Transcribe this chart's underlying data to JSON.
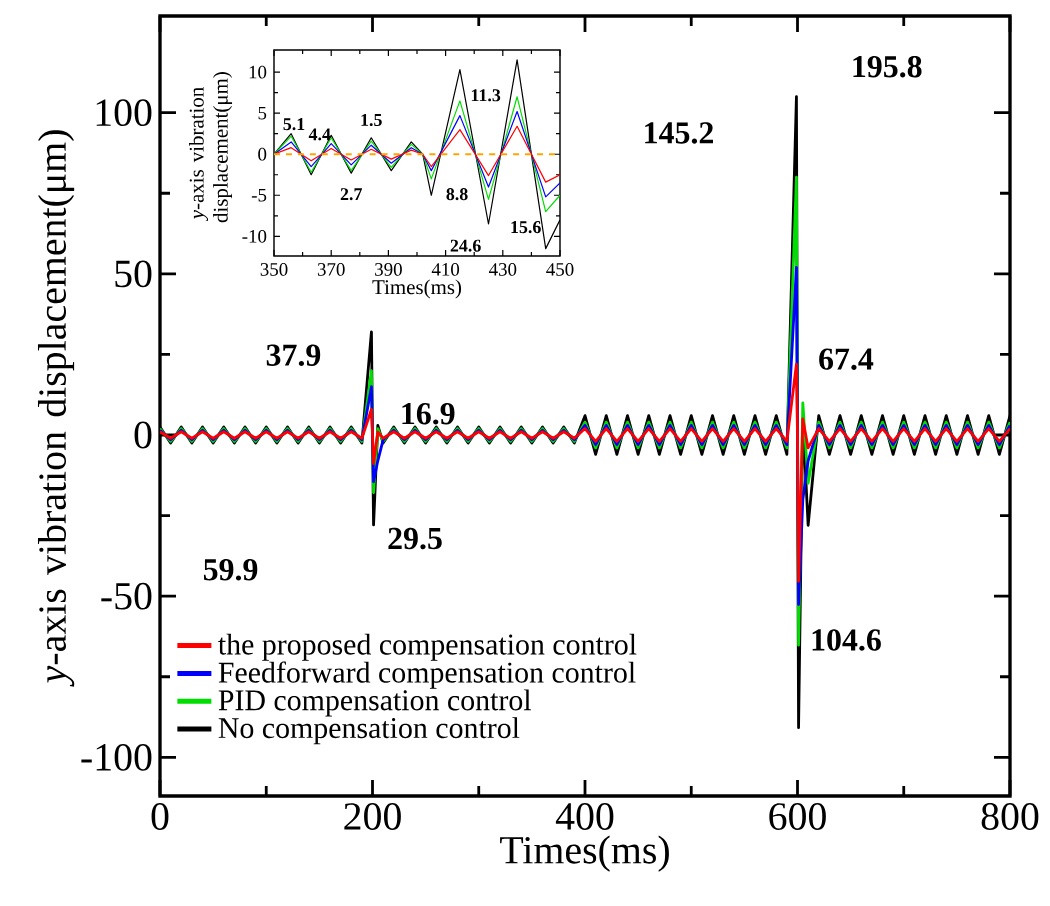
{
  "chart_data": [
    {
      "type": "line",
      "xlabel": "Times(ms)",
      "ylabel": "*y*-axis vibration displacement(μm)",
      "xlim": [
        0,
        800
      ],
      "ylim": [
        -112,
        130
      ],
      "xticks": [
        0,
        200,
        400,
        600,
        800
      ],
      "yticks": [
        -100,
        -50,
        0,
        50,
        100
      ],
      "legend": "bottom left",
      "x": [
        0,
        10,
        20,
        30,
        40,
        50,
        60,
        70,
        80,
        90,
        100,
        110,
        120,
        130,
        140,
        150,
        160,
        170,
        180,
        190,
        199,
        200,
        201,
        205,
        210,
        220,
        230,
        240,
        250,
        260,
        270,
        280,
        290,
        300,
        310,
        320,
        330,
        340,
        350,
        360,
        370,
        380,
        390,
        400,
        410,
        420,
        430,
        440,
        450,
        460,
        470,
        480,
        490,
        500,
        510,
        520,
        530,
        540,
        550,
        560,
        570,
        580,
        590,
        599,
        600,
        601,
        605,
        610,
        620,
        630,
        640,
        650,
        660,
        670,
        680,
        690,
        700,
        710,
        720,
        730,
        740,
        750,
        760,
        770,
        780,
        790,
        800
      ],
      "series": [
        {
          "name": "the proposed compensation control",
          "color": "#ff0000",
          "values": [
            1,
            -1,
            1,
            -1,
            1,
            -1,
            1,
            -1,
            1,
            -1,
            1,
            -1,
            1,
            -1,
            1,
            -1,
            1,
            -1,
            1,
            -1,
            8,
            0,
            -8.9,
            1,
            -1,
            1,
            -1,
            1,
            -1,
            1,
            -1,
            1,
            -1,
            1,
            -1,
            1,
            -1,
            1,
            -1,
            1,
            -1,
            1,
            -1,
            2,
            -2,
            2,
            -2,
            2,
            -2,
            2,
            -2,
            2,
            -2,
            2,
            -2,
            2,
            -2,
            2,
            -2,
            2,
            -2,
            2,
            -2,
            22,
            0,
            -45.4,
            5,
            -4,
            2,
            -2,
            2,
            -2,
            2,
            -2,
            2,
            -2,
            2,
            -2,
            2,
            -2,
            2,
            -2,
            2,
            -2,
            2,
            -2,
            2
          ]
        },
        {
          "name": "Feedforward compensation control",
          "color": "#0000ff",
          "values": [
            1.5,
            -1.5,
            1.5,
            -1.5,
            1.5,
            -1.5,
            1.5,
            -1.5,
            1.5,
            -1.5,
            1.5,
            -1.5,
            1.5,
            -1.5,
            1.5,
            -1.5,
            1.5,
            -1.5,
            1.5,
            -1.5,
            15,
            0,
            -14.5,
            -8,
            -1.5,
            1.5,
            -1.5,
            1.5,
            -1.5,
            1.5,
            -1.5,
            1.5,
            -1.5,
            1.5,
            -1.5,
            1.5,
            -1.5,
            1.5,
            -1.5,
            1.5,
            -1.5,
            1.5,
            -1.5,
            3,
            -3,
            3,
            -3,
            3,
            -3,
            3,
            -3,
            3,
            -3,
            3,
            -3,
            3,
            -3,
            3,
            -3,
            3,
            -3,
            3,
            -3,
            52,
            0,
            -52.6,
            -20,
            -8,
            3,
            -3,
            3,
            -3,
            3,
            -3,
            3,
            -3,
            3,
            -3,
            3,
            -3,
            3,
            -3,
            3,
            -3,
            3,
            -3,
            3
          ]
        },
        {
          "name": "PID compensation control",
          "color": "#00dd00",
          "values": [
            2,
            -2,
            2,
            -2,
            2,
            -2,
            2,
            -2,
            2,
            -2,
            2,
            -2,
            2,
            -2,
            2,
            -2,
            2,
            -2,
            2,
            -2,
            20,
            0,
            -17.9,
            2,
            -2,
            2,
            -2,
            2,
            -2,
            2,
            -2,
            2,
            -2,
            2,
            -2,
            2,
            -2,
            2,
            -2,
            2,
            -2,
            2,
            -2,
            4,
            -4,
            4,
            -4,
            4,
            -4,
            4,
            -4,
            4,
            -4,
            4,
            -4,
            4,
            -4,
            4,
            -4,
            4,
            -4,
            4,
            -4,
            80,
            0,
            -65.2,
            10,
            -15,
            4,
            -4,
            4,
            -4,
            4,
            -4,
            4,
            -4,
            4,
            -4,
            4,
            -4,
            4,
            -4,
            4,
            -4,
            4,
            -4,
            4
          ]
        },
        {
          "name": "No compensation control",
          "color": "#000000",
          "values": [
            2.5,
            -2.5,
            2.5,
            -2.5,
            2.5,
            -2.5,
            2.5,
            -2.5,
            2.5,
            -2.5,
            2.5,
            -2.5,
            2.5,
            -2.5,
            2.5,
            -2.5,
            2.5,
            -2.5,
            2.5,
            -2.5,
            32,
            0,
            -27.9,
            3,
            -2.5,
            2.5,
            -2.5,
            2.5,
            -2.5,
            2.5,
            -2.5,
            2.5,
            -2.5,
            2.5,
            -2.5,
            2.5,
            -2.5,
            2.5,
            -2.5,
            2.5,
            -2.5,
            2.5,
            -2.5,
            6,
            -6,
            6,
            -6,
            6,
            -6,
            6,
            -6,
            6,
            -6,
            6,
            -6,
            6,
            -6,
            6,
            -6,
            6,
            -6,
            6,
            -6,
            105,
            0,
            -90.8,
            5,
            -28,
            6,
            -6,
            6,
            -6,
            6,
            -6,
            6,
            -6,
            6,
            -6,
            6,
            -6,
            6,
            -6,
            6,
            -6,
            6,
            -6,
            6
          ]
        }
      ],
      "annotations": [
        "37.9",
        "59.9",
        "16.9",
        "29.5",
        "145.2",
        "195.8",
        "67.4",
        "104.6"
      ]
    },
    {
      "type": "line",
      "xlabel": "Times(ms)",
      "ylabel": "*y*-axis vibration displacement(μm)",
      "xlim": [
        350,
        450
      ],
      "ylim": [
        -12.4,
        12.7
      ],
      "xticks": [
        350,
        370,
        390,
        410,
        430,
        450
      ],
      "yticks": [
        -10,
        -5,
        0,
        5,
        10
      ],
      "x": [
        350,
        356,
        363,
        370,
        377,
        384,
        391,
        398,
        402,
        405,
        415,
        425,
        435,
        445,
        450
      ],
      "series": [
        {
          "color": "#ff0000",
          "values": [
            0,
            0.8,
            -0.8,
            0.7,
            -0.7,
            0.6,
            -0.6,
            0.5,
            0,
            -1.5,
            3,
            -2.6,
            3.4,
            -3.4,
            -2.5
          ]
        },
        {
          "color": "#0000ff",
          "values": [
            0,
            1.5,
            -1.5,
            1.3,
            -1.3,
            1.1,
            -1.1,
            0.8,
            0,
            -2,
            4.7,
            -4,
            5.2,
            -5.2,
            -3.5
          ]
        },
        {
          "color": "#00dd00",
          "values": [
            0,
            2.2,
            -2.2,
            2,
            -2,
            1.6,
            -1.6,
            1.2,
            0,
            -3,
            6.5,
            -5.5,
            7,
            -7,
            -5
          ]
        },
        {
          "color": "#000000",
          "values": [
            0,
            2.5,
            -2.5,
            2.3,
            -2.3,
            2,
            -2,
            1.5,
            0,
            -5,
            10.3,
            -8.5,
            11.5,
            -11.5,
            -8
          ]
        }
      ],
      "ref_lines": [
        {
          "axis": "y",
          "value": 0,
          "color": "#ffa500",
          "line_style": "dashed"
        }
      ],
      "annotations": [
        "5.1",
        "4.4",
        "1.5",
        "2.7",
        "11.3",
        "8.8",
        "24.6",
        "15.6"
      ]
    }
  ]
}
